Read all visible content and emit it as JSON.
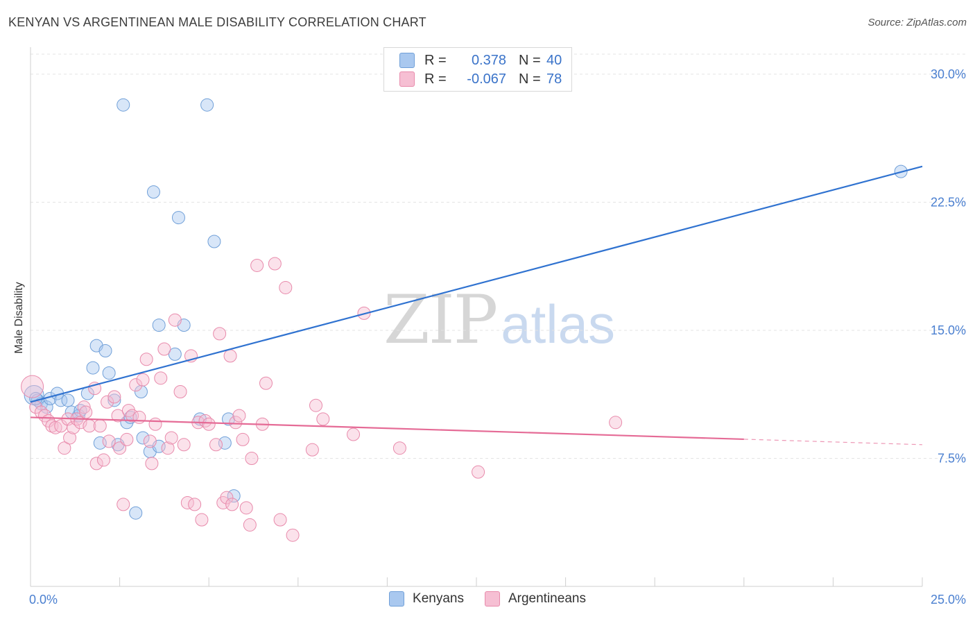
{
  "header": {
    "title": "KENYAN VS ARGENTINEAN MALE DISABILITY CORRELATION CHART",
    "source": "Source: ZipAtlas.com"
  },
  "watermark": {
    "part1": "ZIP",
    "part2": "atlas"
  },
  "legend": {
    "rows": [
      {
        "r_label": "R =",
        "r_value": "0.378",
        "n_label": "N =",
        "n_value": "40",
        "color": "#a9c8ef",
        "border": "#6f9fd8"
      },
      {
        "r_label": "R =",
        "r_value": "-0.067",
        "n_label": "N =",
        "n_value": "78",
        "color": "#f6bfd3",
        "border": "#e88aab"
      }
    ]
  },
  "bottom_legend": {
    "items": [
      "Kenyans",
      "Argentineans"
    ]
  },
  "chart_data": {
    "type": "scatter",
    "title": "KENYAN VS ARGENTINEAN MALE DISABILITY CORRELATION CHART",
    "ylabel": "Male Disability",
    "xlim": [
      0,
      25
    ],
    "ylim": [
      0,
      31.5
    ],
    "x_tick_labels": [
      "0.0%",
      "25.0%"
    ],
    "y_ticks": [
      7.5,
      15.0,
      22.5,
      30.0
    ],
    "y_tick_labels": [
      "7.5%",
      "15.0%",
      "22.5%",
      "30.0%"
    ],
    "grid": true,
    "series": [
      {
        "name": "Kenyans",
        "color": "#6f9fd8",
        "fill": "#a9c8ef",
        "trend": {
          "x": [
            0,
            25
          ],
          "y": [
            10.8,
            24.6
          ],
          "dashed_from": null
        },
        "points": [
          [
            0.1,
            11.2,
            14
          ],
          [
            0.2,
            10.9,
            9
          ],
          [
            0.3,
            10.7,
            9
          ],
          [
            0.45,
            10.5,
            9
          ],
          [
            0.55,
            11.0,
            9
          ],
          [
            0.75,
            11.3,
            9
          ],
          [
            0.85,
            10.9,
            9
          ],
          [
            1.05,
            10.9,
            9
          ],
          [
            1.15,
            10.2,
            9
          ],
          [
            1.35,
            10.0,
            9
          ],
          [
            1.4,
            10.3,
            9
          ],
          [
            1.6,
            11.3,
            9
          ],
          [
            1.75,
            12.8,
            9
          ],
          [
            1.85,
            14.1,
            9
          ],
          [
            1.95,
            8.4,
            9
          ],
          [
            2.1,
            13.8,
            9
          ],
          [
            2.2,
            12.5,
            9
          ],
          [
            2.35,
            10.9,
            9
          ],
          [
            2.45,
            8.3,
            9
          ],
          [
            2.6,
            28.2,
            9
          ],
          [
            2.7,
            9.6,
            9
          ],
          [
            2.8,
            9.9,
            9
          ],
          [
            2.95,
            4.3,
            9
          ],
          [
            3.1,
            11.4,
            9
          ],
          [
            3.15,
            8.7,
            9
          ],
          [
            3.35,
            7.9,
            9
          ],
          [
            3.45,
            23.1,
            9
          ],
          [
            3.6,
            8.2,
            9
          ],
          [
            3.6,
            15.3,
            9
          ],
          [
            4.05,
            13.6,
            9
          ],
          [
            4.15,
            21.6,
            9
          ],
          [
            4.3,
            15.3,
            9
          ],
          [
            4.75,
            9.8,
            9
          ],
          [
            4.95,
            28.2,
            9
          ],
          [
            5.15,
            20.2,
            9
          ],
          [
            5.45,
            8.4,
            9
          ],
          [
            5.55,
            9.8,
            9
          ],
          [
            5.7,
            5.3,
            9
          ],
          [
            24.4,
            24.3,
            9
          ],
          [
            0.15,
            11.0,
            9
          ]
        ]
      },
      {
        "name": "Argentineans",
        "color": "#e88aab",
        "fill": "#f6bfd3",
        "trend": {
          "x": [
            0,
            25
          ],
          "y": [
            9.9,
            8.3
          ],
          "dashed_from": 20
        },
        "points": [
          [
            0.05,
            11.7,
            16
          ],
          [
            0.15,
            10.5,
            9
          ],
          [
            0.3,
            10.2,
            9
          ],
          [
            0.4,
            10.0,
            9
          ],
          [
            0.5,
            9.7,
            9
          ],
          [
            0.6,
            9.4,
            9
          ],
          [
            0.7,
            9.3,
            9
          ],
          [
            0.85,
            9.4,
            9
          ],
          [
            0.95,
            8.1,
            9
          ],
          [
            1.05,
            9.8,
            9
          ],
          [
            1.1,
            8.7,
            9
          ],
          [
            1.2,
            9.3,
            9
          ],
          [
            1.3,
            9.8,
            9
          ],
          [
            1.4,
            9.6,
            9
          ],
          [
            1.5,
            10.5,
            9
          ],
          [
            1.55,
            10.2,
            9
          ],
          [
            1.65,
            9.4,
            9
          ],
          [
            1.8,
            11.6,
            9
          ],
          [
            1.85,
            7.2,
            9
          ],
          [
            1.95,
            9.4,
            9
          ],
          [
            2.05,
            7.4,
            9
          ],
          [
            2.15,
            10.8,
            9
          ],
          [
            2.2,
            8.5,
            9
          ],
          [
            2.35,
            11.1,
            9
          ],
          [
            2.45,
            10.0,
            9
          ],
          [
            2.5,
            8.1,
            9
          ],
          [
            2.6,
            4.8,
            9
          ],
          [
            2.7,
            8.6,
            9
          ],
          [
            2.75,
            10.3,
            9
          ],
          [
            2.85,
            10.0,
            9
          ],
          [
            2.95,
            11.8,
            9
          ],
          [
            3.05,
            9.9,
            9
          ],
          [
            3.15,
            12.1,
            9
          ],
          [
            3.25,
            13.3,
            9
          ],
          [
            3.35,
            8.5,
            9
          ],
          [
            3.4,
            7.2,
            9
          ],
          [
            3.5,
            9.5,
            9
          ],
          [
            3.65,
            12.2,
            9
          ],
          [
            3.75,
            13.9,
            9
          ],
          [
            3.85,
            8.1,
            9
          ],
          [
            3.95,
            8.7,
            9
          ],
          [
            4.05,
            15.6,
            9
          ],
          [
            4.2,
            11.4,
            9
          ],
          [
            4.3,
            8.3,
            9
          ],
          [
            4.4,
            4.9,
            9
          ],
          [
            4.5,
            13.5,
            9
          ],
          [
            4.6,
            4.8,
            9
          ],
          [
            4.7,
            9.6,
            9
          ],
          [
            4.8,
            3.9,
            9
          ],
          [
            4.9,
            9.7,
            9
          ],
          [
            5.0,
            9.5,
            9
          ],
          [
            5.2,
            8.3,
            9
          ],
          [
            5.3,
            14.8,
            9
          ],
          [
            5.4,
            4.9,
            9
          ],
          [
            5.5,
            5.2,
            9
          ],
          [
            5.6,
            13.5,
            9
          ],
          [
            5.65,
            4.8,
            9
          ],
          [
            5.75,
            9.6,
            9
          ],
          [
            5.85,
            10.0,
            9
          ],
          [
            5.95,
            8.6,
            9
          ],
          [
            6.05,
            4.6,
            9
          ],
          [
            6.15,
            3.6,
            9
          ],
          [
            6.2,
            7.5,
            9
          ],
          [
            6.35,
            18.8,
            9
          ],
          [
            6.5,
            9.5,
            9
          ],
          [
            6.6,
            11.9,
            9
          ],
          [
            6.85,
            18.9,
            9
          ],
          [
            7.0,
            3.9,
            9
          ],
          [
            7.15,
            17.5,
            9
          ],
          [
            7.35,
            3.0,
            9
          ],
          [
            7.9,
            8.0,
            9
          ],
          [
            8.0,
            10.6,
            9
          ],
          [
            8.2,
            9.8,
            9
          ],
          [
            9.05,
            8.9,
            9
          ],
          [
            9.35,
            16.0,
            9
          ],
          [
            10.35,
            8.1,
            9
          ],
          [
            12.55,
            6.7,
            9
          ],
          [
            16.4,
            9.6,
            9
          ]
        ]
      }
    ]
  }
}
